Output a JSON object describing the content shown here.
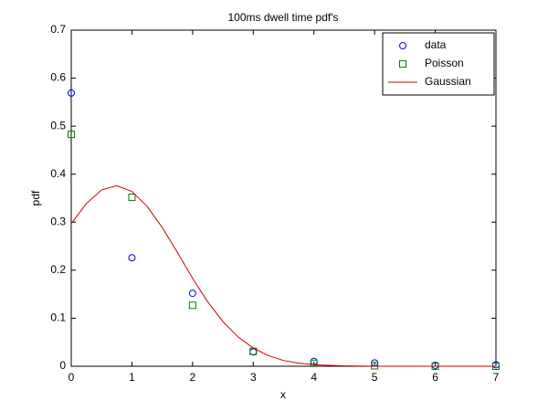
{
  "chart_data": {
    "type": "line",
    "title": "100ms dwell time pdf's",
    "xlabel": "x",
    "ylabel": "pdf",
    "xlim": [
      0,
      7
    ],
    "ylim": [
      0,
      0.7
    ],
    "xticks": [
      0,
      1,
      2,
      3,
      4,
      5,
      6,
      7
    ],
    "yticks": [
      0,
      0.1,
      0.2,
      0.3,
      0.4,
      0.5,
      0.6,
      0.7
    ],
    "grid": false,
    "legend": "upper-right",
    "series": [
      {
        "name": "data",
        "color": "#0000ff",
        "marker": "circle",
        "x": [
          0,
          1,
          2,
          3,
          4,
          5,
          6,
          7
        ],
        "values": [
          0.569,
          0.226,
          0.152,
          0.03,
          0.01,
          0.007,
          0.002,
          0.003
        ]
      },
      {
        "name": "Poisson",
        "color": "#008000",
        "marker": "square",
        "x": [
          0,
          1,
          2,
          3,
          4,
          5,
          6,
          7
        ],
        "values": [
          0.483,
          0.352,
          0.127,
          0.031,
          0.006,
          0.001,
          0.0001,
          0
        ]
      },
      {
        "name": "Gaussian",
        "color": "#cc0000",
        "marker": "none",
        "x": [
          0,
          0.25,
          0.5,
          0.75,
          1,
          1.25,
          1.5,
          1.75,
          2,
          2.25,
          2.5,
          2.75,
          3,
          3.25,
          3.5,
          3.75,
          4,
          4.5,
          5,
          5.5,
          6,
          6.5,
          7
        ],
        "values": [
          0.297,
          0.339,
          0.367,
          0.376,
          0.364,
          0.333,
          0.289,
          0.237,
          0.183,
          0.134,
          0.093,
          0.061,
          0.038,
          0.022,
          0.012,
          0.0065,
          0.0032,
          0.0007,
          0.0001,
          0,
          0,
          0,
          0
        ]
      }
    ]
  }
}
